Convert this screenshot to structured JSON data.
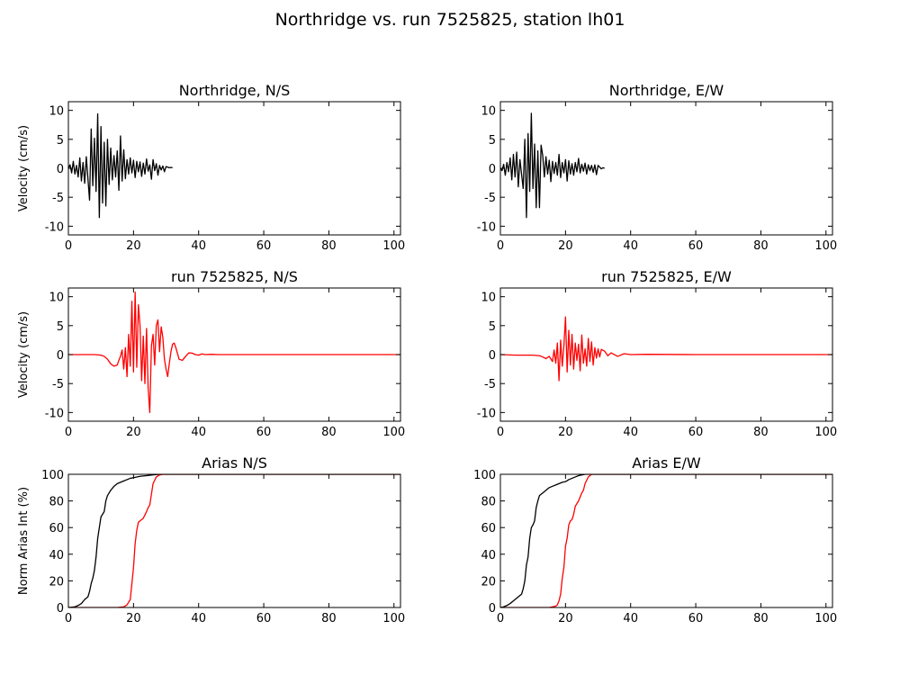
{
  "figure": {
    "title": "Northridge vs. run 7525825, station lh01"
  },
  "chart_data": [
    {
      "type": "line",
      "title": "Northridge, N/S",
      "ylabel": "Velocity (cm/s)",
      "xlim": [
        0,
        102
      ],
      "ylim": [
        -11.5,
        11.5
      ],
      "xticks": [
        0,
        20,
        40,
        60,
        80,
        100
      ],
      "yticks": [
        -10,
        -5,
        0,
        5,
        10
      ],
      "series": [
        {
          "color": "#000000",
          "x": [
            0,
            0.5,
            1,
            1.5,
            2,
            2.5,
            3,
            3.5,
            4,
            4.5,
            5,
            5.5,
            6,
            6.5,
            7,
            7.5,
            8,
            8.5,
            9,
            9.5,
            10,
            10.5,
            11,
            11.5,
            12,
            12.5,
            13,
            13.5,
            14,
            14.5,
            15,
            15.5,
            16,
            16.5,
            17,
            17.5,
            18,
            18.5,
            19,
            19.5,
            20,
            20.5,
            21,
            21.5,
            22,
            22.5,
            23,
            23.5,
            24,
            24.5,
            25,
            25.5,
            26,
            26.5,
            27,
            27.5,
            28,
            28.5,
            29,
            29.5,
            30,
            30.5,
            31,
            31.5,
            32
          ],
          "y": [
            0,
            0.6,
            -0.8,
            1.2,
            -1.0,
            0.5,
            -1.5,
            1.8,
            -2.2,
            1.0,
            -2.6,
            2.0,
            -1.8,
            -5.5,
            6.8,
            -3.0,
            5.2,
            -4.0,
            9.4,
            -8.5,
            7.2,
            -6.0,
            4.5,
            -6.5,
            5.0,
            -2.8,
            3.5,
            -2.0,
            2.2,
            -1.5,
            3.0,
            -3.8,
            5.6,
            -2.2,
            3.2,
            -1.8,
            1.5,
            -1.0,
            1.8,
            -0.8,
            1.4,
            -1.6,
            1.2,
            -0.6,
            1.1,
            -1.4,
            0.9,
            -1.0,
            1.6,
            -0.5,
            0.6,
            -1.9,
            1.5,
            -0.4,
            0.8,
            -1.2,
            0.5,
            -0.3,
            0.4,
            -0.6,
            0.3,
            0.2,
            0.1,
            0.15,
            0.1
          ]
        }
      ]
    },
    {
      "type": "line",
      "title": "Northridge, E/W",
      "ylabel": "",
      "xlim": [
        0,
        102
      ],
      "ylim": [
        -11.5,
        11.5
      ],
      "xticks": [
        0,
        20,
        40,
        60,
        80,
        100
      ],
      "yticks": [
        -10,
        -5,
        0,
        5,
        10
      ],
      "series": [
        {
          "color": "#000000",
          "x": [
            0,
            0.5,
            1,
            1.5,
            2,
            2.5,
            3,
            3.5,
            4,
            4.5,
            5,
            5.5,
            6,
            6.5,
            7,
            7.5,
            8,
            8.5,
            9,
            9.5,
            10,
            10.5,
            11,
            11.5,
            12,
            12.5,
            13,
            13.5,
            14,
            14.5,
            15,
            15.5,
            16,
            16.5,
            17,
            17.5,
            18,
            18.5,
            19,
            19.5,
            20,
            20.5,
            21,
            21.5,
            22,
            22.5,
            23,
            23.5,
            24,
            24.5,
            25,
            25.5,
            26,
            26.5,
            27,
            27.5,
            28,
            28.5,
            29,
            29.5,
            30,
            30.5,
            31,
            31.5,
            32
          ],
          "y": [
            0,
            -0.4,
            0.7,
            -1.2,
            1.0,
            -0.6,
            1.8,
            -2.0,
            2.4,
            -1.5,
            2.8,
            -3.2,
            1.5,
            -1.0,
            -3.5,
            5.0,
            -8.5,
            6.0,
            -4.0,
            9.5,
            -3.5,
            4.2,
            -6.8,
            3.0,
            -6.8,
            4.0,
            2.2,
            -1.5,
            2.0,
            -1.0,
            1.4,
            -2.3,
            1.2,
            -0.9,
            1.0,
            -1.2,
            2.4,
            -1.6,
            1.0,
            -0.8,
            1.5,
            -2.2,
            1.3,
            -1.0,
            0.8,
            -1.2,
            1.0,
            -0.6,
            1.7,
            -0.8,
            0.7,
            -0.5,
            0.9,
            -1.0,
            0.6,
            -0.4,
            0.5,
            -0.7,
            0.6,
            -1.1,
            0.5,
            0.2,
            -0.1,
            0.1,
            0.0
          ]
        }
      ]
    },
    {
      "type": "line",
      "title": "run 7525825, N/S",
      "ylabel": "Velocity (cm/s)",
      "xlim": [
        0,
        102
      ],
      "ylim": [
        -11.5,
        11.5
      ],
      "xticks": [
        0,
        20,
        40,
        60,
        80,
        100
      ],
      "yticks": [
        -10,
        -5,
        0,
        5,
        10
      ],
      "series": [
        {
          "color": "#ff0000",
          "x": [
            0,
            4,
            8,
            10,
            11,
            12,
            13,
            14,
            15,
            15.5,
            16,
            16.5,
            17,
            17.5,
            18,
            18.5,
            19,
            19.5,
            20,
            20.5,
            21,
            21.5,
            22,
            22.5,
            23,
            23.5,
            24,
            24.5,
            25,
            25.5,
            26,
            26.5,
            27,
            27.5,
            28,
            28.5,
            29,
            29.5,
            30,
            30.5,
            31,
            31.5,
            32,
            32.5,
            33,
            33.5,
            34,
            35,
            36,
            37,
            38,
            39,
            40,
            41,
            42,
            44,
            46,
            50,
            60,
            80,
            102
          ],
          "y": [
            0,
            0,
            0,
            -0.1,
            -0.3,
            -0.8,
            -1.6,
            -2.0,
            -1.8,
            -1.0,
            -0.3,
            0.8,
            -2.5,
            1.2,
            -3.8,
            3.5,
            -2.0,
            9.2,
            -3.0,
            10.8,
            -2.2,
            8.6,
            5.0,
            -4.5,
            3.2,
            -5.0,
            4.5,
            -5.8,
            -10.0,
            1.5,
            3.5,
            -1.8,
            5.0,
            6.0,
            0.5,
            4.8,
            3.0,
            -0.8,
            -2.5,
            -3.8,
            -1.5,
            0.5,
            1.8,
            2.0,
            1.2,
            0.2,
            -0.8,
            -1.0,
            -0.3,
            0.3,
            0.25,
            0.0,
            -0.1,
            0.12,
            0.0,
            0.05,
            0.0,
            0.0,
            0.0,
            0.0,
            0.0
          ]
        }
      ]
    },
    {
      "type": "line",
      "title": "run 7525825, E/W",
      "ylabel": "",
      "xlim": [
        0,
        102
      ],
      "ylim": [
        -11.5,
        11.5
      ],
      "xticks": [
        0,
        20,
        40,
        60,
        80,
        100
      ],
      "yticks": [
        -10,
        -5,
        0,
        5,
        10
      ],
      "series": [
        {
          "color": "#ff0000",
          "x": [
            0,
            5,
            10,
            12,
            13,
            14,
            15,
            16,
            16.5,
            17,
            17.5,
            18,
            18.5,
            19,
            19.5,
            20,
            20.5,
            21,
            21.5,
            22,
            22.5,
            23,
            23.5,
            24,
            24.5,
            25,
            25.5,
            26,
            26.5,
            27,
            27.5,
            28,
            28.5,
            29,
            29.5,
            30,
            30.5,
            31,
            32,
            33,
            34,
            36,
            38,
            40,
            45,
            60,
            80,
            102
          ],
          "y": [
            0,
            -0.1,
            -0.1,
            -0.2,
            -0.4,
            -0.7,
            -0.3,
            -1.2,
            0.8,
            -1.5,
            2.0,
            -4.5,
            2.5,
            -2.0,
            1.5,
            6.5,
            -3.0,
            4.2,
            -1.8,
            3.5,
            -2.5,
            2.0,
            -1.0,
            1.8,
            -2.8,
            3.4,
            -1.5,
            1.0,
            -2.0,
            2.8,
            -1.2,
            2.2,
            -1.8,
            1.2,
            -0.6,
            1.0,
            -0.4,
            0.9,
            0.6,
            -0.2,
            0.3,
            -0.3,
            0.15,
            0.0,
            0.05,
            0.0,
            0.0,
            0.0
          ]
        }
      ]
    },
    {
      "type": "line",
      "title": "Arias N/S",
      "ylabel": "Norm Arias Int (%)",
      "xlim": [
        0,
        102
      ],
      "ylim": [
        0,
        100
      ],
      "xticks": [
        0,
        20,
        40,
        60,
        80,
        100
      ],
      "yticks": [
        0,
        20,
        40,
        60,
        80,
        100
      ],
      "series": [
        {
          "color": "#000000",
          "x": [
            0,
            2,
            3,
            4,
            5,
            6,
            6.5,
            7,
            7.5,
            8,
            8.5,
            9,
            9.5,
            10,
            10.5,
            11,
            11.5,
            12,
            12.5,
            13,
            14,
            15,
            16,
            17,
            18,
            19,
            20,
            21,
            22,
            24,
            26,
            28,
            30,
            32,
            102
          ],
          "y": [
            0,
            0.5,
            1.5,
            3,
            6,
            8,
            12,
            18,
            22,
            28,
            38,
            52,
            60,
            68,
            70,
            72,
            80,
            84,
            86,
            88,
            91,
            93,
            94,
            95,
            96,
            97,
            97.5,
            98,
            98.5,
            99,
            99.6,
            100,
            100,
            100,
            100
          ]
        },
        {
          "color": "#ff0000",
          "x": [
            0,
            10,
            15,
            17,
            18,
            19,
            19.5,
            20,
            20.5,
            21,
            21.5,
            22,
            23,
            24,
            24.5,
            25,
            25.5,
            26,
            27,
            28,
            29,
            30,
            102
          ],
          "y": [
            0,
            0,
            0,
            0.5,
            2,
            6,
            18,
            30,
            48,
            58,
            64,
            65,
            67,
            72,
            75,
            77,
            85,
            93,
            98,
            99.5,
            100,
            100,
            100
          ]
        }
      ]
    },
    {
      "type": "line",
      "title": "Arias E/W",
      "ylabel": "",
      "xlim": [
        0,
        102
      ],
      "ylim": [
        0,
        100
      ],
      "xticks": [
        0,
        20,
        40,
        60,
        80,
        100
      ],
      "yticks": [
        0,
        20,
        40,
        60,
        80,
        100
      ],
      "series": [
        {
          "color": "#000000",
          "x": [
            0,
            1,
            2,
            3,
            4,
            5,
            6,
            6.5,
            7,
            7.5,
            8,
            8.5,
            9,
            9.5,
            10,
            10.5,
            11,
            11.5,
            12,
            13,
            14,
            15,
            16,
            17,
            18,
            19,
            20,
            21,
            22,
            23,
            24,
            25,
            26,
            27,
            28,
            102
          ],
          "y": [
            0,
            0.5,
            1.5,
            3,
            5,
            7,
            9,
            10,
            14,
            20,
            32,
            38,
            52,
            60,
            62,
            65,
            75,
            80,
            84,
            86,
            88,
            90,
            91,
            92,
            93,
            94,
            94.5,
            96,
            97,
            98,
            99,
            99.5,
            100,
            100,
            100,
            100
          ]
        },
        {
          "color": "#ff0000",
          "x": [
            0,
            10,
            15,
            17,
            17.5,
            18,
            18.5,
            19,
            19.5,
            20,
            20.5,
            21,
            21.5,
            22,
            22.5,
            23,
            24,
            24.5,
            25,
            25.5,
            26,
            27,
            28,
            102
          ],
          "y": [
            0,
            0,
            0,
            1,
            2,
            5,
            10,
            22,
            30,
            46,
            52,
            62,
            65,
            66,
            70,
            76,
            80,
            83,
            86,
            88,
            93,
            98,
            100,
            100
          ]
        }
      ]
    }
  ]
}
